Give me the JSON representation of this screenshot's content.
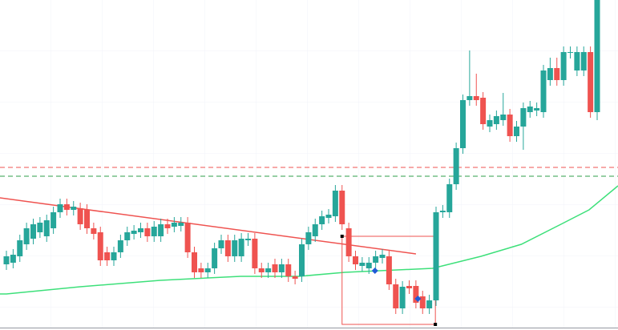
{
  "chart_data": {
    "type": "candlestick",
    "categories": [
      null,
      null,
      null,
      null,
      null,
      null,
      null,
      null,
      null,
      null,
      null,
      null,
      null,
      null,
      null,
      null,
      null,
      null,
      null,
      null,
      null,
      null,
      null,
      null,
      null,
      null,
      null,
      null,
      null,
      null,
      null,
      null,
      null,
      null,
      null,
      null,
      null,
      null,
      null,
      null,
      null,
      null,
      null,
      null,
      null,
      null,
      null,
      null,
      null,
      null,
      null,
      null,
      null,
      null,
      null,
      null,
      null,
      null,
      null,
      null,
      null,
      null,
      null,
      null,
      null,
      null,
      null,
      null,
      null,
      null,
      null,
      null,
      null,
      null,
      null,
      null,
      null,
      null,
      null,
      null,
      null,
      null,
      null,
      null,
      null,
      null,
      null,
      null,
      null
    ],
    "open": [
      82,
      84,
      92,
      107,
      114,
      122,
      117,
      127,
      147,
      157,
      150,
      152,
      150,
      127,
      122,
      97,
      87,
      97,
      112,
      120,
      122,
      127,
      117,
      117,
      132,
      129,
      130,
      134,
      97,
      77,
      72,
      77,
      102,
      112,
      92,
      92,
      112,
      114,
      77,
      72,
      82,
      72,
      82,
      67,
      67,
      107,
      117,
      132,
      140,
      142,
      174,
      127,
      92,
      80,
      77,
      84,
      90,
      92,
      57,
      27,
      55,
      55,
      42,
      27,
      37,
      147,
      147,
      182,
      227,
      287,
      292,
      290,
      254,
      257,
      262,
      269,
      242,
      254,
      272,
      274,
      272,
      312,
      327,
      312,
      346,
      324,
      324,
      347,
      272
    ],
    "high": [
      99,
      101,
      119,
      134,
      139,
      141,
      144,
      154,
      164,
      164,
      161,
      159,
      157,
      134,
      129,
      104,
      104,
      119,
      129,
      131,
      134,
      134,
      136,
      139,
      139,
      141,
      141,
      141,
      104,
      84,
      84,
      109,
      119,
      119,
      119,
      121,
      121,
      121,
      84,
      84,
      89,
      89,
      89,
      74,
      114,
      129,
      139,
      149,
      151,
      181,
      181,
      134,
      99,
      91,
      91,
      99,
      101,
      99,
      64,
      61,
      62,
      62,
      49,
      44,
      154,
      156,
      189,
      234,
      294,
      349,
      320,
      297,
      269,
      274,
      296,
      276,
      261,
      284,
      286,
      284,
      331,
      340,
      340,
      354,
      354,
      354,
      354,
      354,
      430
    ],
    "low": [
      75,
      77,
      85,
      100,
      107,
      115,
      110,
      120,
      140,
      143,
      143,
      125,
      120,
      113,
      80,
      80,
      80,
      90,
      105,
      113,
      115,
      110,
      110,
      110,
      120,
      122,
      123,
      90,
      65,
      65,
      65,
      70,
      95,
      85,
      85,
      85,
      105,
      70,
      65,
      65,
      65,
      65,
      60,
      57,
      60,
      100,
      110,
      125,
      133,
      135,
      125,
      85,
      75,
      73,
      70,
      77,
      83,
      50,
      20,
      20,
      45,
      27,
      20,
      20,
      30,
      140,
      140,
      175,
      220,
      280,
      280,
      250,
      247,
      250,
      255,
      235,
      235,
      225,
      265,
      267,
      265,
      305,
      305,
      305,
      339,
      317,
      317,
      265,
      262
    ],
    "close": [
      92,
      94,
      112,
      127,
      132,
      134,
      137,
      147,
      157,
      150,
      154,
      132,
      127,
      120,
      87,
      87,
      97,
      112,
      122,
      124,
      127,
      117,
      129,
      132,
      127,
      134,
      134,
      97,
      72,
      72,
      77,
      102,
      112,
      92,
      112,
      114,
      114,
      77,
      72,
      77,
      72,
      82,
      67,
      64,
      107,
      122,
      132,
      142,
      144,
      174,
      132,
      92,
      82,
      84,
      84,
      92,
      94,
      57,
      27,
      54,
      52,
      34,
      27,
      37,
      147,
      149,
      182,
      227,
      287,
      292,
      287,
      257,
      262,
      267,
      269,
      242,
      254,
      277,
      279,
      277,
      324,
      327,
      312,
      347,
      347,
      347,
      347,
      272,
      417
    ],
    "up_color": "#26a69a",
    "down_color": "#ef5350",
    "ylim": [
      0,
      412
    ],
    "hlines": [
      {
        "value": 203,
        "color": "#ef5350"
      },
      {
        "value": 192,
        "color": "#2e9e4a"
      }
    ],
    "trendline": {
      "x": [
        -1,
        61
      ],
      "values": [
        165,
        95
      ],
      "color": "#ef5350"
    },
    "moving_average": {
      "x": [
        -1,
        0,
        11,
        22.9,
        34.9,
        43.6,
        50.4,
        63.5,
        70.7,
        76.7,
        82.6,
        86.8,
        91.1
      ],
      "values": [
        45,
        45,
        54,
        62,
        67,
        67,
        72,
        77,
        92,
        107,
        132,
        150,
        180
      ],
      "color": "#3de07a"
    },
    "box": {
      "x": [
        50,
        63.9
      ],
      "values": [
        117,
        7
      ],
      "color": "#ef5350"
    },
    "markers": {
      "x": [
        54.9,
        61.3
      ],
      "values": [
        74,
        39
      ],
      "color": "#1f5bd6"
    }
  }
}
